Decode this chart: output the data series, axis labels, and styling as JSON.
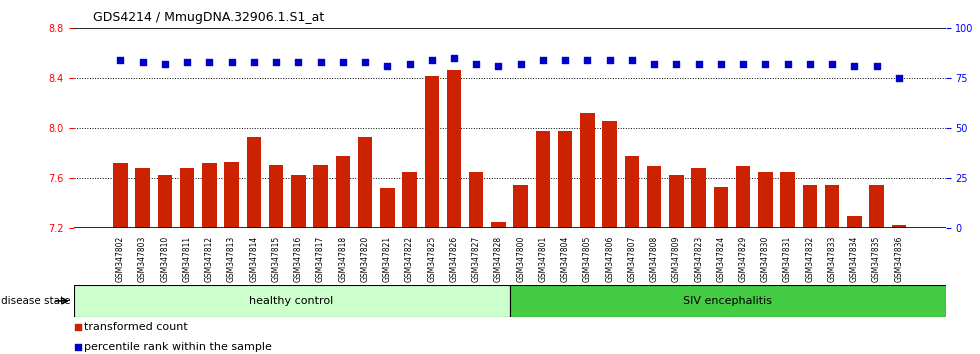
{
  "title": "GDS4214 / MmugDNA.32906.1.S1_at",
  "samples": [
    "GSM347802",
    "GSM347803",
    "GSM347810",
    "GSM347811",
    "GSM347812",
    "GSM347813",
    "GSM347814",
    "GSM347815",
    "GSM347816",
    "GSM347817",
    "GSM347818",
    "GSM347820",
    "GSM347821",
    "GSM347822",
    "GSM347825",
    "GSM347826",
    "GSM347827",
    "GSM347828",
    "GSM347800",
    "GSM347801",
    "GSM347804",
    "GSM347805",
    "GSM347806",
    "GSM347807",
    "GSM347808",
    "GSM347809",
    "GSM347823",
    "GSM347824",
    "GSM347829",
    "GSM347830",
    "GSM347831",
    "GSM347832",
    "GSM347833",
    "GSM347834",
    "GSM347835",
    "GSM347836"
  ],
  "bar_values": [
    7.72,
    7.68,
    7.63,
    7.68,
    7.72,
    7.73,
    7.93,
    7.71,
    7.63,
    7.71,
    7.78,
    7.93,
    7.52,
    7.65,
    8.42,
    8.47,
    7.65,
    7.25,
    7.55,
    7.98,
    7.98,
    8.12,
    8.06,
    7.78,
    7.7,
    7.63,
    7.68,
    7.53,
    7.7,
    7.65,
    7.65,
    7.55,
    7.55,
    7.3,
    7.55,
    7.23
  ],
  "percentile_values": [
    84,
    83,
    82,
    83,
    83,
    83,
    83,
    83,
    83,
    83,
    83,
    83,
    81,
    82,
    84,
    85,
    82,
    81,
    82,
    84,
    84,
    84,
    84,
    84,
    82,
    82,
    82,
    82,
    82,
    82,
    82,
    82,
    82,
    81,
    81,
    75
  ],
  "n_healthy": 18,
  "n_siv": 18,
  "ylim_left": [
    7.2,
    8.8
  ],
  "ylim_right": [
    0,
    100
  ],
  "yticks_left": [
    7.2,
    7.6,
    8.0,
    8.4,
    8.8
  ],
  "yticks_right": [
    0,
    25,
    50,
    75,
    100
  ],
  "bar_color": "#cc2200",
  "dot_color": "#0000cc",
  "healthy_color": "#ccffcc",
  "siv_color": "#44cc44",
  "xtick_bg_color": "#d0d0d0",
  "legend_bar_label": "transformed count",
  "legend_dot_label": "percentile rank within the sample",
  "disease_label": "disease state",
  "healthy_label": "healthy control",
  "siv_label": "SIV encephalitis"
}
